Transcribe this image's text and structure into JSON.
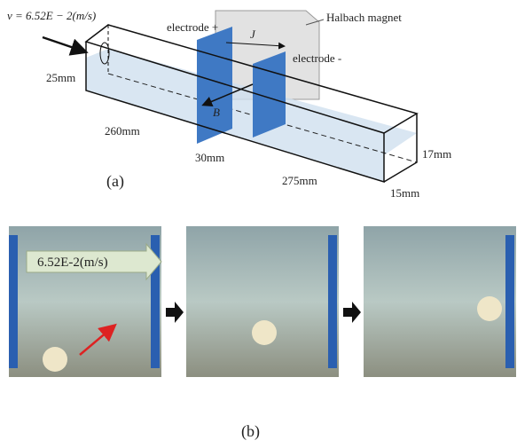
{
  "panel_a": {
    "velocity": "v = 6.52E − 2(m/s)",
    "electrode_plus": "electrode +",
    "current": "J",
    "magnet": "Halbach magnet",
    "electrode_minus": "electrode -",
    "height": "25mm",
    "field": "B",
    "length_left": "260mm",
    "length_mid": "30mm",
    "length_right": "275mm",
    "water_depth": "17mm",
    "width": "15mm",
    "caption": "(a)"
  },
  "panel_b": {
    "velocity": "6.52E-2(m/s)",
    "caption": "(b)"
  }
}
